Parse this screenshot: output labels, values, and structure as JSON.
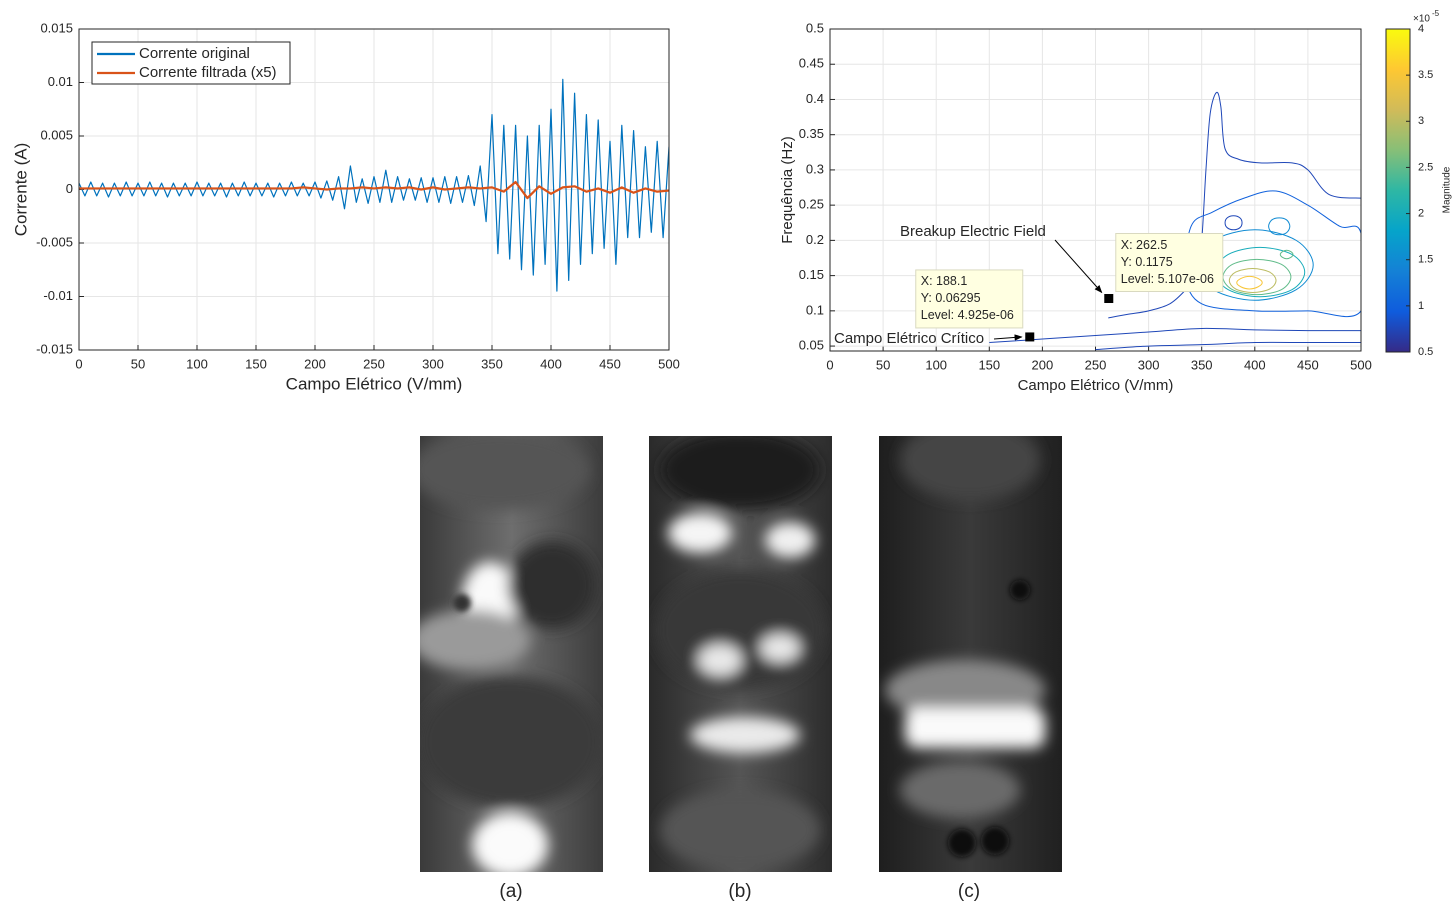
{
  "chart_data": [
    {
      "type": "line",
      "xlabel": "Campo Elétrico (V/mm)",
      "ylabel": "Corrente (A)",
      "xlim": [
        0,
        500
      ],
      "ylim": [
        -0.015,
        0.015
      ],
      "xticks": [
        0,
        50,
        100,
        150,
        200,
        250,
        300,
        350,
        400,
        450,
        500
      ],
      "yticks": [
        -0.015,
        -0.01,
        -0.005,
        0,
        0.005,
        0.01,
        0.015
      ],
      "grid": true,
      "legend": "upper left",
      "series": [
        {
          "name": "Corrente original",
          "color": "#0072bd",
          "x": [
            0,
            5,
            10,
            15,
            20,
            25,
            30,
            35,
            40,
            45,
            50,
            55,
            60,
            65,
            70,
            75,
            80,
            85,
            90,
            95,
            100,
            105,
            110,
            115,
            120,
            125,
            130,
            135,
            140,
            145,
            150,
            155,
            160,
            165,
            170,
            175,
            180,
            185,
            190,
            195,
            200,
            205,
            210,
            215,
            220,
            225,
            230,
            235,
            240,
            245,
            250,
            255,
            260,
            265,
            270,
            275,
            280,
            285,
            290,
            295,
            300,
            305,
            310,
            315,
            320,
            325,
            330,
            335,
            340,
            345,
            350,
            355,
            360,
            365,
            370,
            375,
            380,
            385,
            390,
            395,
            400,
            405,
            410,
            415,
            420,
            425,
            430,
            435,
            440,
            445,
            450,
            455,
            460,
            465,
            470,
            475,
            480,
            485,
            490,
            495,
            500
          ],
          "values": [
            0.0006,
            -0.0006,
            0.0007,
            -0.0006,
            0.0006,
            -0.0007,
            0.0006,
            -0.0006,
            0.0007,
            -0.0006,
            0.0006,
            -0.0006,
            0.0007,
            -0.0006,
            0.0006,
            -0.0007,
            0.0006,
            -0.0006,
            0.0006,
            -0.0006,
            0.0007,
            -0.0006,
            0.0006,
            -0.0006,
            0.0006,
            -0.0007,
            0.0006,
            -0.0006,
            0.0007,
            -0.0006,
            0.0006,
            -0.0006,
            0.0006,
            -0.0007,
            0.0006,
            -0.0006,
            0.0007,
            -0.0006,
            0.0006,
            -0.0006,
            0.0007,
            -0.0008,
            0.0008,
            -0.001,
            0.0012,
            -0.0018,
            0.0022,
            -0.0012,
            0.001,
            -0.0013,
            0.0012,
            -0.0012,
            0.0018,
            -0.0012,
            0.0012,
            -0.001,
            0.001,
            -0.001,
            0.0011,
            -0.0012,
            0.0011,
            -0.0012,
            0.0012,
            -0.0013,
            0.0012,
            -0.0012,
            0.0013,
            -0.0015,
            0.0022,
            -0.003,
            0.007,
            -0.006,
            0.006,
            -0.0065,
            0.006,
            -0.0075,
            0.005,
            -0.008,
            0.006,
            -0.007,
            0.0075,
            -0.0095,
            0.0103,
            -0.0085,
            0.009,
            -0.007,
            0.007,
            -0.006,
            0.0065,
            -0.0055,
            0.0045,
            -0.007,
            0.006,
            -0.0045,
            0.0055,
            -0.0045,
            0.004,
            -0.004,
            0.0045,
            -0.0045,
            0.004
          ]
        },
        {
          "name": "Corrente filtrada (x5)",
          "color": "#d95319",
          "x": [
            0,
            10,
            20,
            30,
            40,
            50,
            60,
            70,
            80,
            90,
            100,
            110,
            120,
            130,
            140,
            150,
            160,
            170,
            180,
            190,
            200,
            210,
            220,
            230,
            240,
            250,
            260,
            270,
            280,
            290,
            300,
            310,
            320,
            330,
            340,
            350,
            360,
            370,
            380,
            390,
            400,
            410,
            420,
            430,
            440,
            450,
            460,
            470,
            480,
            490,
            500
          ],
          "values": [
            0.0001,
            0.0001,
            0.0001,
            0.0001,
            0.0001,
            0.0001,
            0.0001,
            0.0001,
            0.0001,
            0.0001,
            0.0001,
            0.0001,
            0.0001,
            0.0001,
            0.0001,
            0.0001,
            0.0001,
            0.0001,
            0.0001,
            0.0002,
            0.0001,
            0,
            0.0001,
            0.0001,
            0.0002,
            0.0001,
            0.0002,
            0.0001,
            0.0002,
            0,
            0.0002,
            0,
            0.0001,
            0.0002,
            0.0001,
            0.0002,
            -0.0002,
            0.0007,
            -0.0008,
            0.0003,
            -0.0004,
            0.0002,
            0.0003,
            -0.0002,
            0.0001,
            -0.0003,
            0.0002,
            -0.0003,
            0.0001,
            -0.0002,
            -0.0001
          ]
        }
      ]
    },
    {
      "type": "contour",
      "xlabel": "Campo Elétrico (V/mm)",
      "ylabel": "Frequência (Hz)",
      "xlim": [
        0,
        500
      ],
      "ylim": [
        0.043,
        0.5
      ],
      "xticks": [
        0,
        50,
        100,
        150,
        200,
        250,
        300,
        350,
        400,
        450,
        500
      ],
      "yticks": [
        0.05,
        0.1,
        0.15,
        0.2,
        0.25,
        0.3,
        0.35,
        0.4,
        0.45,
        0.5
      ],
      "grid": true,
      "colormap": [
        "#352a87",
        "#0f5cdd",
        "#1481d6",
        "#06a4ca",
        "#2eb7a4",
        "#87bf77",
        "#d1bb59",
        "#fec832",
        "#f9fb0e"
      ],
      "colorbar": {
        "label": "Magnitude",
        "clim": [
          0.5,
          4
        ],
        "ticks": [
          0.5,
          1,
          1.5,
          2,
          2.5,
          3,
          3.5,
          4
        ],
        "exponent_base": "×10",
        "exponent": -5
      },
      "contours": [
        {
          "level": 0.75,
          "closed": false,
          "x": [
            500,
            470,
            450,
            435,
            405,
            385,
            372,
            368,
            364,
            358,
            354,
            350,
            345,
            335,
            320,
            300,
            280,
            262
          ],
          "y": [
            0.26,
            0.265,
            0.3,
            0.31,
            0.31,
            0.315,
            0.33,
            0.39,
            0.41,
            0.38,
            0.3,
            0.2,
            0.15,
            0.13,
            0.11,
            0.1,
            0.095,
            0.09
          ]
        },
        {
          "level": 0.75,
          "closed": false,
          "x": [
            150,
            200,
            250,
            300,
            350,
            400,
            450,
            500
          ],
          "y": [
            0.055,
            0.06,
            0.065,
            0.07,
            0.075,
            0.073,
            0.072,
            0.072
          ]
        },
        {
          "level": 0.75,
          "closed": false,
          "x": [
            250,
            300,
            350,
            400,
            450,
            500
          ],
          "y": [
            0.045,
            0.05,
            0.052,
            0.055,
            0.055,
            0.055
          ]
        },
        {
          "level": 0.75,
          "closed": true,
          "x": [
            388,
            386,
            380,
            374,
            372,
            374,
            380,
            386
          ],
          "y": [
            0.225,
            0.232,
            0.235,
            0.232,
            0.225,
            0.218,
            0.215,
            0.218
          ]
        },
        {
          "level": 1,
          "closed": true,
          "x": [
            340,
            360,
            390,
            420,
            450,
            480,
            500,
            500,
            450,
            400,
            350,
            335
          ],
          "y": [
            0.22,
            0.24,
            0.26,
            0.27,
            0.25,
            0.22,
            0.21,
            0.1,
            0.1,
            0.1,
            0.11,
            0.15
          ]
        },
        {
          "level": 1.5,
          "closed": true,
          "x": [
            455,
            439,
            400,
            361,
            345,
            361,
            400,
            439
          ],
          "y": [
            0.165,
            0.2,
            0.215,
            0.2,
            0.165,
            0.13,
            0.115,
            0.13
          ]
        },
        {
          "level": 1.5,
          "closed": true,
          "x": [
            433,
            430,
            423,
            416,
            413,
            416,
            423,
            430
          ],
          "y": [
            0.22,
            0.229,
            0.232,
            0.229,
            0.22,
            0.211,
            0.208,
            0.211
          ]
        },
        {
          "level": 2,
          "closed": true,
          "x": [
            447,
            435,
            405,
            375,
            363,
            375,
            405,
            435
          ],
          "y": [
            0.155,
            0.18,
            0.19,
            0.18,
            0.155,
            0.13,
            0.12,
            0.13
          ]
        },
        {
          "level": 2.5,
          "closed": true,
          "x": [
            434,
            425,
            402,
            379,
            370,
            379,
            402,
            425
          ],
          "y": [
            0.148,
            0.166,
            0.173,
            0.166,
            0.148,
            0.13,
            0.123,
            0.13
          ]
        },
        {
          "level": 2.5,
          "closed": true,
          "x": [
            436,
            434,
            430,
            426,
            424,
            426,
            430,
            434
          ],
          "y": [
            0.18,
            0.184,
            0.186,
            0.184,
            0.18,
            0.176,
            0.174,
            0.176
          ]
        },
        {
          "level": 3,
          "closed": true,
          "x": [
            420,
            414,
            398,
            382,
            376,
            382,
            398,
            414
          ],
          "y": [
            0.143,
            0.155,
            0.16,
            0.155,
            0.143,
            0.131,
            0.126,
            0.131
          ]
        },
        {
          "level": 3.5,
          "closed": true,
          "x": [
            407,
            403,
            395,
            387,
            383,
            387,
            395,
            403
          ],
          "y": [
            0.14,
            0.146,
            0.149,
            0.146,
            0.14,
            0.134,
            0.131,
            0.134
          ]
        }
      ],
      "datatips": [
        {
          "x": 188.1,
          "y": 0.06295,
          "lines": [
            "X: 188.1",
            "Y: 0.06295",
            "Level: 4.925e-06"
          ]
        },
        {
          "x": 262.5,
          "y": 0.1175,
          "lines": [
            "X: 262.5",
            "Y: 0.1175",
            "Level: 5.107e-06"
          ]
        }
      ],
      "annotations": [
        {
          "text": "Campo Elétrico Crítico"
        },
        {
          "text": "Breakup Electric Field"
        }
      ]
    }
  ],
  "figure": {
    "panels": [
      "(a)",
      "(b)",
      "(c)"
    ]
  }
}
